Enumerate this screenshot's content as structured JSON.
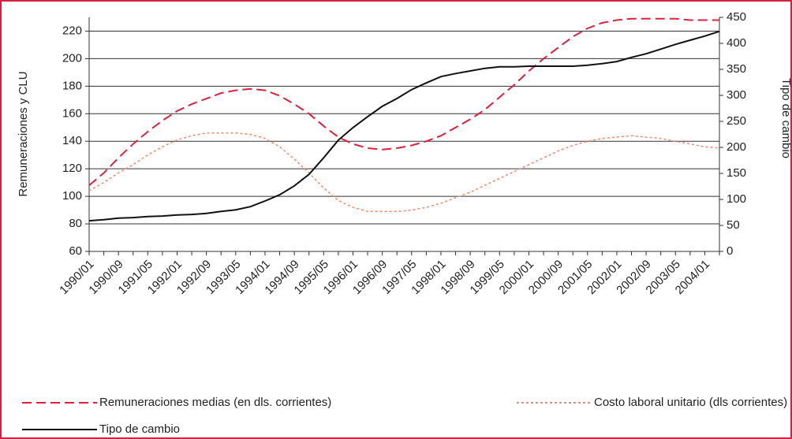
{
  "chart_data": {
    "type": "line",
    "y_label": "Remuneraciones y CLU",
    "y2_label": "Tipo de cambio",
    "categories": [
      "1990/01",
      null,
      "1990/09",
      null,
      "1991/05",
      null,
      "1992/01",
      null,
      "1992/09",
      null,
      "1993/05",
      null,
      "1994/01",
      null,
      "1994/09",
      null,
      "1995/05",
      null,
      "1996/01",
      null,
      "1996/09",
      null,
      "1997/05",
      null,
      "1998/01",
      null,
      "1998/09",
      null,
      "1999/05",
      null,
      "2000/01",
      null,
      "2000/09",
      null,
      "2001/05",
      null,
      "2002/01",
      null,
      "2002/09",
      null,
      "2003/05",
      null,
      "2004/01",
      null
    ],
    "ylim": [
      60,
      230
    ],
    "yticks": [
      60,
      80,
      100,
      120,
      140,
      160,
      180,
      200,
      220
    ],
    "y2lim": [
      0,
      450
    ],
    "y2ticks": [
      0,
      50,
      100,
      150,
      200,
      250,
      300,
      350,
      400,
      450
    ],
    "grid": true,
    "series": [
      {
        "name": "Remuneraciones medias (en dls. corrientes)",
        "color": "#e0203c",
        "dash": "dashed",
        "values": [
          108,
          117,
          128,
          138,
          147,
          155,
          162,
          167,
          171,
          175,
          177,
          178,
          177,
          173,
          167,
          160,
          151,
          143,
          138,
          135,
          134,
          135,
          137,
          140,
          144,
          150,
          156,
          163,
          172,
          181,
          191,
          200,
          208,
          216,
          222,
          226,
          228,
          229,
          229,
          229,
          229,
          228,
          228,
          228
        ]
      },
      {
        "name": "Costo laboral unitario (dls corrientes)",
        "color": "#f08a6c",
        "dash": "dotted",
        "values": [
          104,
          110,
          117,
          123,
          130,
          136,
          141,
          144,
          146,
          146,
          146,
          145,
          142,
          136,
          127,
          117,
          106,
          97,
          92,
          89,
          89,
          89,
          90,
          92,
          95,
          99,
          103,
          108,
          113,
          118,
          123,
          128,
          133,
          137,
          140,
          142,
          143,
          144,
          143,
          142,
          140,
          138,
          136,
          135
        ]
      },
      {
        "name": "Tipo de cambio",
        "color": "#111111",
        "dash": "solid",
        "axis": "y2",
        "values": [
          59,
          61,
          64,
          65,
          67,
          68,
          70,
          71,
          73,
          77,
          80,
          86,
          97,
          109,
          126,
          148,
          180,
          214,
          238,
          259,
          279,
          294,
          311,
          324,
          336,
          342,
          347,
          352,
          355,
          355,
          356,
          356,
          356,
          356,
          358,
          361,
          365,
          373,
          380,
          389,
          398,
          406,
          414,
          423
        ]
      }
    ]
  }
}
